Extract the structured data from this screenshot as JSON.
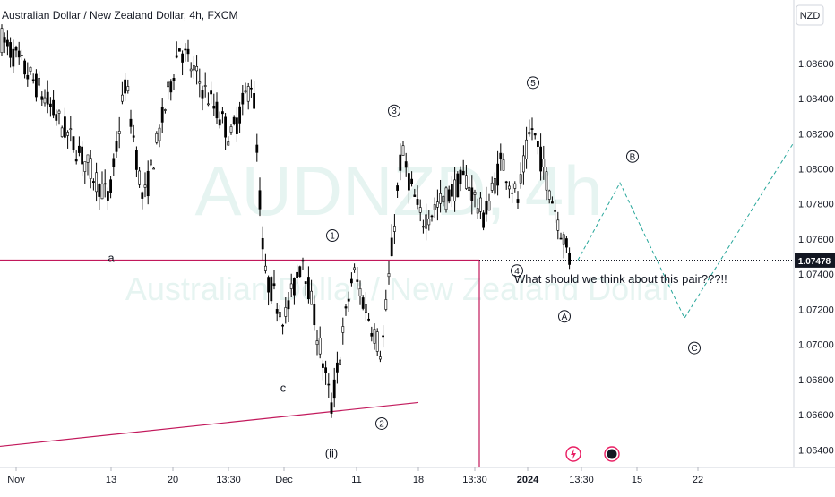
{
  "chart_data": {
    "type": "candlestick",
    "title": "Australian Dollar / New Zealand Dollar, 4h, FXCM",
    "watermark": {
      "ticker": "AUDNZD, 4h",
      "name": "Australian Dollar / New Zealand Dollar"
    },
    "currency": "NZD",
    "last_price": "1.07478",
    "ylim": [
      1.063,
      1.0892
    ],
    "y_ticks": [
      "1.08600",
      "1.08400",
      "1.08200",
      "1.08000",
      "1.07800",
      "1.07600",
      "1.07400",
      "1.07200",
      "1.07000",
      "1.06800",
      "1.06600",
      "1.06400"
    ],
    "x_ticks": [
      "Nov",
      "13",
      "20",
      "13:30",
      "Dec",
      "11",
      "18",
      "13:30",
      "2024",
      "13:30",
      "15",
      "22"
    ],
    "anchors": [
      [
        "Nov",
        1.0875
      ],
      [
        "Nov",
        1.0848
      ],
      [
        "13",
        1.08
      ],
      [
        "13",
        1.0782
      ],
      [
        "13",
        1.085
      ],
      [
        "20",
        1.078
      ],
      [
        "20",
        1.087
      ],
      [
        "13:30",
        1.0818
      ],
      [
        "13:30",
        1.0852
      ],
      [
        "Dec",
        1.074
      ],
      [
        "Dec",
        1.0715
      ],
      [
        "Dec",
        1.075
      ],
      [
        "11",
        1.0664
      ],
      [
        "11",
        1.0742
      ],
      [
        "11",
        1.0695
      ],
      [
        "18",
        1.081
      ],
      [
        "18",
        1.077
      ],
      [
        "13:30",
        1.0795
      ],
      [
        "13:30",
        1.0772
      ],
      [
        "2024",
        1.0805
      ],
      [
        "2024",
        1.0782
      ],
      [
        "2024",
        1.0825
      ],
      [
        "13:30",
        1.0748
      ]
    ],
    "projection": [
      [
        "13:30",
        1.0748
      ],
      [
        "15",
        1.0792
      ],
      [
        "22",
        1.0715
      ],
      [
        "22",
        1.0815
      ]
    ],
    "horizontal_level": 1.0748,
    "trendline": [
      [
        1.0642
      ],
      [
        1.0667
      ]
    ],
    "wave_labels": [
      {
        "text": "1",
        "price": 1.0762
      },
      {
        "text": "2",
        "price": 1.0655
      },
      {
        "text": "3",
        "price": 1.0833
      },
      {
        "text": "4",
        "price": 1.0742
      },
      {
        "text": "5",
        "price": 1.0849
      },
      {
        "text": "A",
        "price": 1.0716
      },
      {
        "text": "B",
        "price": 1.0807
      },
      {
        "text": "C",
        "price": 1.0698
      }
    ],
    "text_labels": [
      {
        "text": "a",
        "price": 1.0749
      },
      {
        "text": "c",
        "price": 1.0675
      },
      {
        "text": "(ii)",
        "price": 1.0638
      }
    ],
    "annotation": "What should we think about this pair???!!",
    "grid": false,
    "colors": {
      "candle": "#000000",
      "level": "#c2185b",
      "projection": "#26a69a",
      "last_price_bg": "#131722"
    }
  }
}
